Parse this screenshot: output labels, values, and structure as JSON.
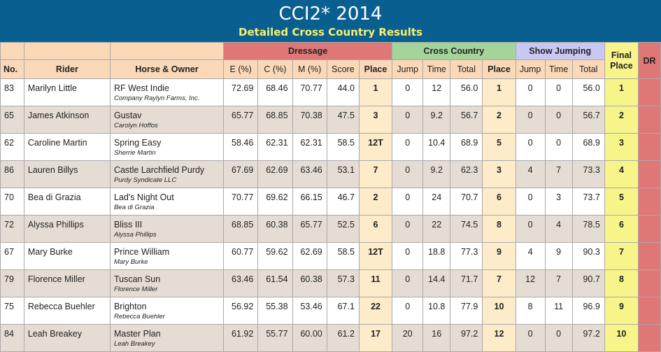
{
  "header": {
    "title": "CCI2* 2014",
    "subtitle": "Detailed Cross Country Results"
  },
  "groups": {
    "dressage": "Dressage",
    "cross_country": "Cross Country",
    "show_jumping": "Show Jumping",
    "final_line1": "Final",
    "final_line2": "Place"
  },
  "columns": {
    "no": "No.",
    "rider": "Rider",
    "horse_owner": "Horse & Owner",
    "e": "E (%)",
    "c": "C (%)",
    "m": "M (%)",
    "score": "Score",
    "d_place": "Place",
    "xc_jump": "Jump",
    "xc_time": "Time",
    "xc_total": "Total",
    "xc_place": "Place",
    "sj_jump": "Jump",
    "sj_time": "Time",
    "sj_total": "Total",
    "dr": "DR"
  },
  "rows": [
    {
      "no": "83",
      "rider": "Marilyn Little",
      "horse": "RF West Indie",
      "owner": "Company Raylyn Farms, Inc.",
      "e": "72.69",
      "c": "68.46",
      "m": "70.77",
      "score": "44.0",
      "d_place": "1",
      "xc_jump": "0",
      "xc_time": "12",
      "xc_total": "56.0",
      "xc_place": "1",
      "sj_jump": "0",
      "sj_time": "0",
      "sj_total": "56.0",
      "final": "1"
    },
    {
      "no": "65",
      "rider": "James Atkinson",
      "horse": "Gustav",
      "owner": "Carolyn Hoffos",
      "e": "65.77",
      "c": "68.85",
      "m": "70.38",
      "score": "47.5",
      "d_place": "3",
      "xc_jump": "0",
      "xc_time": "9.2",
      "xc_total": "56.7",
      "xc_place": "2",
      "sj_jump": "0",
      "sj_time": "0",
      "sj_total": "56.7",
      "final": "2"
    },
    {
      "no": "62",
      "rider": "Caroline Martin",
      "horse": "Spring Easy",
      "owner": "Sherrie Martin",
      "e": "58.46",
      "c": "62.31",
      "m": "62.31",
      "score": "58.5",
      "d_place": "12T",
      "xc_jump": "0",
      "xc_time": "10.4",
      "xc_total": "68.9",
      "xc_place": "5",
      "sj_jump": "0",
      "sj_time": "0",
      "sj_total": "68.9",
      "final": "3"
    },
    {
      "no": "86",
      "rider": "Lauren Billys",
      "horse": "Castle Larchfield Purdy",
      "owner": "Purdy Syndicate LLC",
      "e": "67.69",
      "c": "62.69",
      "m": "63.46",
      "score": "53.1",
      "d_place": "7",
      "xc_jump": "0",
      "xc_time": "9.2",
      "xc_total": "62.3",
      "xc_place": "3",
      "sj_jump": "4",
      "sj_time": "7",
      "sj_total": "73.3",
      "final": "4"
    },
    {
      "no": "70",
      "rider": "Bea di Grazia",
      "horse": "Lad's Night Out",
      "owner": "Bea di Grazia",
      "e": "70.77",
      "c": "69.62",
      "m": "66.15",
      "score": "46.7",
      "d_place": "2",
      "xc_jump": "0",
      "xc_time": "24",
      "xc_total": "70.7",
      "xc_place": "6",
      "sj_jump": "0",
      "sj_time": "3",
      "sj_total": "73.7",
      "final": "5"
    },
    {
      "no": "72",
      "rider": "Alyssa Phillips",
      "horse": "Bliss III",
      "owner": "Alyssa Phillips",
      "e": "68.85",
      "c": "60.38",
      "m": "65.77",
      "score": "52.5",
      "d_place": "6",
      "xc_jump": "0",
      "xc_time": "22",
      "xc_total": "74.5",
      "xc_place": "8",
      "sj_jump": "0",
      "sj_time": "4",
      "sj_total": "78.5",
      "final": "6"
    },
    {
      "no": "67",
      "rider": "Mary Burke",
      "horse": "Prince William",
      "owner": "Mary Burke",
      "e": "60.77",
      "c": "59.62",
      "m": "62.69",
      "score": "58.5",
      "d_place": "12T",
      "xc_jump": "0",
      "xc_time": "18.8",
      "xc_total": "77.3",
      "xc_place": "9",
      "sj_jump": "4",
      "sj_time": "9",
      "sj_total": "90.3",
      "final": "7"
    },
    {
      "no": "79",
      "rider": "Florence Miller",
      "horse": "Tuscan Sun",
      "owner": "Florence Miller",
      "e": "63.46",
      "c": "61.54",
      "m": "60.38",
      "score": "57.3",
      "d_place": "11",
      "xc_jump": "0",
      "xc_time": "14.4",
      "xc_total": "71.7",
      "xc_place": "7",
      "sj_jump": "12",
      "sj_time": "7",
      "sj_total": "90.7",
      "final": "8"
    },
    {
      "no": "75",
      "rider": "Rebecca Buehler",
      "horse": "Brighton",
      "owner": "Rebecca Buehler",
      "e": "56.92",
      "c": "55.38",
      "m": "53.46",
      "score": "67.1",
      "d_place": "22",
      "xc_jump": "0",
      "xc_time": "10.8",
      "xc_total": "77.9",
      "xc_place": "10",
      "sj_jump": "8",
      "sj_time": "11",
      "sj_total": "96.9",
      "final": "9"
    },
    {
      "no": "84",
      "rider": "Leah Breakey",
      "horse": "Master Plan",
      "owner": "Leah Breakey",
      "e": "61.92",
      "c": "55.77",
      "m": "60.00",
      "score": "61.2",
      "d_place": "17",
      "xc_jump": "20",
      "xc_time": "16",
      "xc_total": "97.2",
      "xc_place": "12",
      "sj_jump": "0",
      "sj_time": "0",
      "sj_total": "97.2",
      "final": "10"
    }
  ]
}
